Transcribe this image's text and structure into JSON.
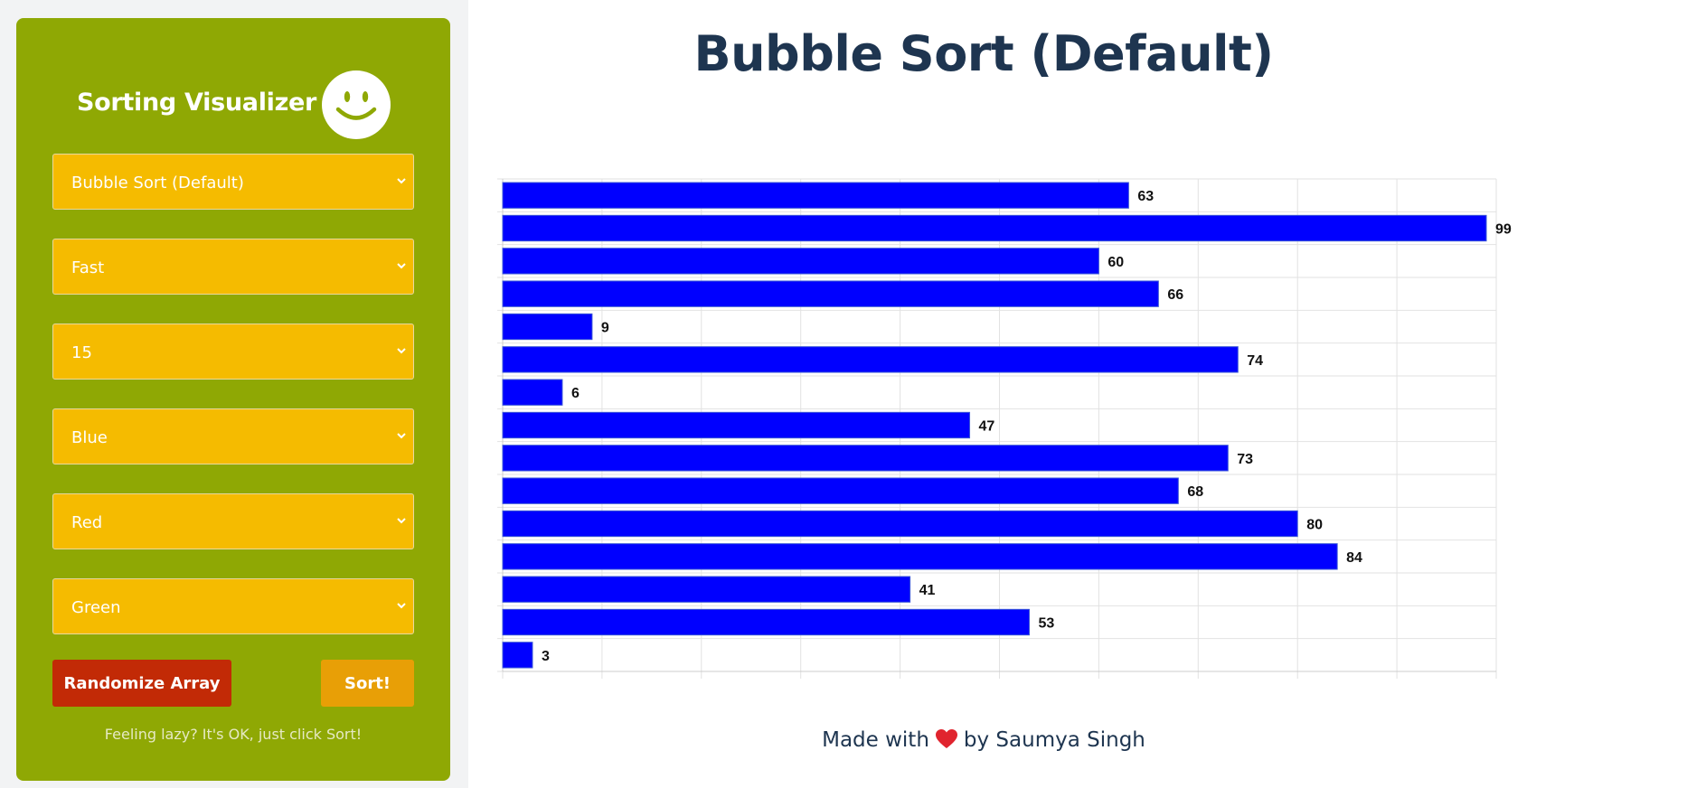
{
  "sidebar": {
    "title": "Sorting Visualizer",
    "logo_icon": "smiley-icon",
    "selects": {
      "algorithm": "Bubble Sort (Default)",
      "speed": "Fast",
      "size": "15",
      "bar_color": "Blue",
      "compare_color": "Red",
      "sorted_color": "Green"
    },
    "randomize_label": "Randomize Array",
    "sort_label": "Sort!",
    "hint": "Feeling lazy? It's OK, just click Sort!"
  },
  "main": {
    "title": "Bubble Sort (Default)",
    "footer_before": "Made with",
    "footer_icon": "heart-icon",
    "footer_after": "by Saumya Singh"
  },
  "colors": {
    "sidebar_bg": "#8fa804",
    "select_bg": "#f5bb00",
    "randomize_bg": "#c22a06",
    "sort_bg": "#e89f06",
    "bar": "#0000ff",
    "title_text": "#1e3550"
  },
  "chart_data": {
    "type": "bar",
    "orientation": "horizontal",
    "values": [
      63,
      99,
      60,
      66,
      9,
      74,
      6,
      47,
      73,
      68,
      80,
      84,
      41,
      53,
      3
    ],
    "xlim": [
      0,
      100
    ],
    "grid": true,
    "legend": "none",
    "data_labels": true
  }
}
